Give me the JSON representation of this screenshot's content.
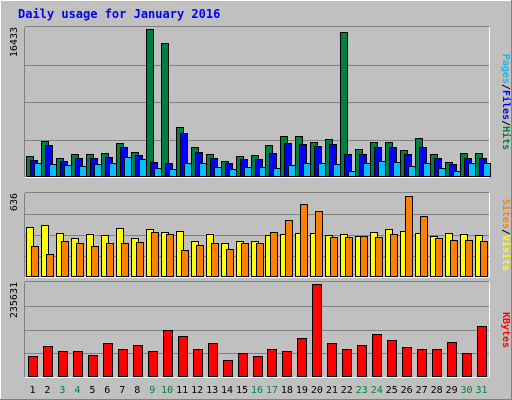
{
  "colors": {
    "background": "#C0C0C0",
    "panel": "#C0C0C0",
    "gridline": "#808080",
    "title": "#0000FF",
    "axis_max_label": "#000000",
    "weekday": "#000000",
    "weekend": "#008040",
    "hits": "#008040",
    "files": "#0000FF",
    "pages": "#00C0FF",
    "visits": "#FFFF00",
    "sites": "#FF8000",
    "kbytes": "#FF0000",
    "bar_outline": "#000000"
  },
  "title": "Daily usage for January 2016",
  "chart_data": [
    {
      "type": "bar",
      "panel": "hits-files-pages",
      "ymax_label": "16433",
      "ylim": [
        0,
        16433
      ],
      "legend": [
        "Pages",
        "/",
        "Files",
        "/",
        "Hits"
      ],
      "categories": [
        "1",
        "2",
        "3",
        "4",
        "5",
        "6",
        "7",
        "8",
        "9",
        "10",
        "11",
        "12",
        "13",
        "14",
        "15",
        "16",
        "17",
        "18",
        "19",
        "20",
        "21",
        "22",
        "23",
        "24",
        "25",
        "26",
        "27",
        "28",
        "29",
        "30",
        "31"
      ],
      "weekend": [
        false,
        false,
        true,
        true,
        false,
        false,
        false,
        false,
        true,
        true,
        false,
        false,
        false,
        false,
        false,
        true,
        true,
        false,
        false,
        false,
        false,
        false,
        true,
        true,
        false,
        false,
        false,
        false,
        false,
        true,
        true
      ],
      "series": [
        {
          "name": "Hits",
          "values": [
            2300,
            4000,
            2100,
            2500,
            2600,
            2700,
            3800,
            2800,
            16433,
            14900,
            5500,
            3300,
            2500,
            1800,
            2300,
            2400,
            3500,
            4500,
            4500,
            3900,
            4200,
            16100,
            3100,
            3900,
            3900,
            3000,
            4300,
            2500,
            1700,
            2700,
            2700
          ]
        },
        {
          "name": "Files",
          "values": [
            1900,
            3500,
            1800,
            2100,
            2100,
            2200,
            3300,
            2400,
            1700,
            1600,
            4900,
            2800,
            2100,
            1500,
            2000,
            2000,
            2700,
            3800,
            3700,
            3400,
            3700,
            2500,
            2600,
            3300,
            3300,
            2500,
            3300,
            2100,
            1400,
            2100,
            2100
          ]
        },
        {
          "name": "Pages",
          "values": [
            1500,
            1400,
            1300,
            1200,
            1400,
            1500,
            2200,
            2000,
            1000,
            900,
            1500,
            1600,
            1100,
            900,
            1100,
            1100,
            1000,
            1300,
            1600,
            1500,
            1400,
            700,
            1500,
            1800,
            1700,
            1200,
            1500,
            1000,
            700,
            1500,
            1500
          ]
        }
      ]
    },
    {
      "type": "bar",
      "panel": "visits-sites",
      "ymax_label": "636",
      "ylim": [
        0,
        636
      ],
      "legend": [
        "Sites",
        "/",
        "Visits"
      ],
      "categories": [
        "1",
        "2",
        "3",
        "4",
        "5",
        "6",
        "7",
        "8",
        "9",
        "10",
        "11",
        "12",
        "13",
        "14",
        "15",
        "16",
        "17",
        "18",
        "19",
        "20",
        "21",
        "22",
        "23",
        "24",
        "25",
        "26",
        "27",
        "28",
        "29",
        "30",
        "31"
      ],
      "series": [
        {
          "name": "Visits",
          "values": [
            390,
            405,
            340,
            300,
            330,
            325,
            380,
            300,
            370,
            350,
            356,
            278,
            330,
            265,
            280,
            278,
            325,
            330,
            340,
            343,
            325,
            330,
            320,
            350,
            370,
            358,
            340,
            320,
            340,
            330,
            323
          ]
        },
        {
          "name": "Sites",
          "values": [
            240,
            180,
            280,
            265,
            240,
            260,
            260,
            275,
            350,
            332,
            210,
            250,
            260,
            215,
            265,
            260,
            350,
            440,
            570,
            510,
            310,
            310,
            320,
            310,
            330,
            630,
            470,
            300,
            290,
            290,
            280
          ]
        }
      ]
    },
    {
      "type": "bar",
      "panel": "kbytes",
      "ymax_label": "235631",
      "ylim": [
        0,
        235631
      ],
      "legend": [
        "KBytes"
      ],
      "categories": [
        "1",
        "2",
        "3",
        "4",
        "5",
        "6",
        "7",
        "8",
        "9",
        "10",
        "11",
        "12",
        "13",
        "14",
        "15",
        "16",
        "17",
        "18",
        "19",
        "20",
        "21",
        "22",
        "23",
        "24",
        "25",
        "26",
        "27",
        "28",
        "29",
        "30",
        "31"
      ],
      "series": [
        {
          "name": "KBytes",
          "values": [
            52000,
            78000,
            66000,
            66000,
            57000,
            85000,
            71000,
            80000,
            65000,
            118000,
            105000,
            72000,
            85000,
            43000,
            62000,
            54000,
            71000,
            66000,
            100000,
            235631,
            86000,
            71000,
            80000,
            109000,
            94000,
            76000,
            71000,
            72000,
            89000,
            60000,
            129000
          ]
        }
      ]
    }
  ]
}
